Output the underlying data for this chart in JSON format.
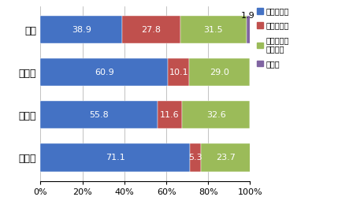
{
  "categories": [
    "若者",
    "子育て",
    "中高年",
    "高齢者"
  ],
  "series_keys": [
    "関心がある",
    "関心がない",
    "どちらともいえない",
    "無回答"
  ],
  "series": {
    "関心がある": [
      38.9,
      60.9,
      55.8,
      71.1
    ],
    "関心がない": [
      27.8,
      10.1,
      11.6,
      5.3
    ],
    "どちらともいえない": [
      31.5,
      29.0,
      32.6,
      23.7
    ],
    "無回答": [
      1.9,
      0.0,
      0.0,
      0.0
    ]
  },
  "colors": {
    "関心がある": "#4472C4",
    "関心がない": "#C0504D",
    "どちらともいえない": "#9BBB59",
    "無回答": "#8064A2"
  },
  "legend_display": [
    "関心がある",
    "関心がない",
    "どちらとも\nいえない",
    "無回答"
  ],
  "xtick_values": [
    0,
    20,
    40,
    60,
    80,
    100
  ],
  "xtick_labels": [
    "0%",
    "20%",
    "40%",
    "60%",
    "80%",
    "100%"
  ],
  "bar_label_fontsize": 8,
  "ytick_fontsize": 9,
  "xtick_fontsize": 8,
  "legend_fontsize": 7,
  "figsize": [
    4.29,
    2.64
  ],
  "dpi": 100
}
